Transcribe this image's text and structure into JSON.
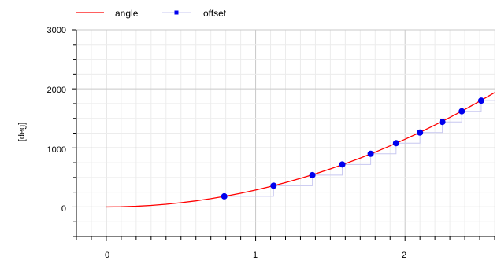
{
  "chart_data": {
    "type": "line",
    "title": "",
    "xlabel": "",
    "ylabel": "[deg]",
    "xlim": [
      -0.2,
      2.6
    ],
    "ylim": [
      -500,
      3000
    ],
    "xticks": [
      "0",
      "1",
      "2"
    ],
    "yticks": [
      "3000",
      "2000",
      "1000",
      "0"
    ],
    "grid": true,
    "legend_position": "top-left",
    "series": [
      {
        "name": "angle",
        "color": "#ff0000",
        "style": "line",
        "x": [
          0,
          0.1,
          0.2,
          0.3,
          0.4,
          0.5,
          0.6,
          0.7,
          0.8,
          0.9,
          1.0,
          1.1,
          1.2,
          1.3,
          1.4,
          1.5,
          1.6,
          1.7,
          1.8,
          1.9,
          2.0,
          2.1,
          2.2,
          2.3,
          2.4,
          2.5,
          2.6
        ],
        "values": [
          0,
          2.9,
          11.5,
          25.8,
          45.9,
          71.7,
          103.2,
          140.4,
          183.4,
          232.1,
          286.5,
          346.7,
          412.5,
          484.2,
          561.5,
          644.6,
          733.4,
          828.0,
          928.3,
          1034.3,
          1146.0,
          1263.5,
          1386.7,
          1515.6,
          1650.3,
          1790.7,
          1936.7
        ]
      },
      {
        "name": "offset",
        "color": "#0000ee",
        "step_color": "#c8c8f0",
        "style": "step-markers",
        "x": [
          0.79,
          1.12,
          1.38,
          1.58,
          1.77,
          1.94,
          2.1,
          2.25,
          2.38,
          2.51
        ],
        "values": [
          180,
          360,
          540,
          720,
          900,
          1080,
          1260,
          1440,
          1620,
          1800
        ]
      }
    ]
  }
}
